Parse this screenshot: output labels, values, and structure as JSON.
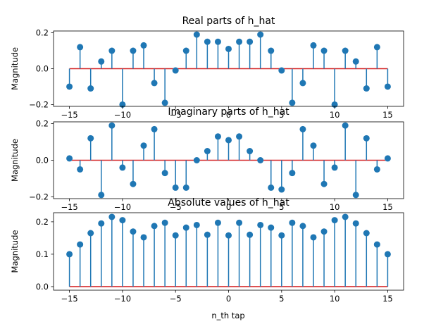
{
  "figure": {
    "xlabel": "n_th tap"
  },
  "chart_data": [
    {
      "type": "stem",
      "title": "Real parts of h_hat",
      "xlabel": "",
      "ylabel": "Magnitude",
      "xlim": [
        -16.5,
        16.5
      ],
      "ylim": [
        -0.21,
        0.21
      ],
      "xticks": [
        -15,
        -10,
        -5,
        0,
        5,
        10,
        15
      ],
      "xtick_labels": [
        "−15",
        "−10",
        "−5",
        "0",
        "5",
        "10",
        "15"
      ],
      "yticks": [
        -0.2,
        0.0,
        0.2
      ],
      "ytick_labels": [
        "−0.2",
        "0.0",
        "0.2"
      ],
      "x": [
        -15,
        -14,
        -13,
        -12,
        -11,
        -10,
        -9,
        -8,
        -7,
        -6,
        -5,
        -4,
        -3,
        -2,
        -1,
        0,
        1,
        2,
        3,
        4,
        5,
        6,
        7,
        8,
        9,
        10,
        11,
        12,
        13,
        14,
        15
      ],
      "y": [
        -0.1,
        0.12,
        -0.11,
        0.04,
        0.1,
        -0.2,
        0.1,
        0.13,
        -0.08,
        -0.19,
        -0.01,
        0.1,
        0.19,
        0.15,
        0.15,
        0.11,
        0.15,
        0.15,
        0.19,
        0.1,
        -0.01,
        -0.19,
        -0.08,
        0.13,
        0.1,
        -0.2,
        0.1,
        0.04,
        -0.11,
        0.12,
        -0.1
      ]
    },
    {
      "type": "stem",
      "title": "Imaginary parts of h_hat",
      "xlabel": "",
      "ylabel": "Magnitude",
      "xlim": [
        -16.5,
        16.5
      ],
      "ylim": [
        -0.21,
        0.21
      ],
      "xticks": [
        -15,
        -10,
        -5,
        0,
        5,
        10,
        15
      ],
      "xtick_labels": [
        "−15",
        "−10",
        "−5",
        "0",
        "5",
        "10",
        "15"
      ],
      "yticks": [
        -0.2,
        0.0,
        0.2
      ],
      "ytick_labels": [
        "−0.2",
        "0.0",
        "0.2"
      ],
      "x": [
        -15,
        -14,
        -13,
        -12,
        -11,
        -10,
        -9,
        -8,
        -7,
        -6,
        -5,
        -4,
        -3,
        -2,
        -1,
        0,
        1,
        2,
        3,
        4,
        5,
        6,
        7,
        8,
        9,
        10,
        11,
        12,
        13,
        14,
        15
      ],
      "y": [
        0.01,
        -0.05,
        0.12,
        -0.19,
        0.19,
        -0.04,
        -0.13,
        0.08,
        0.17,
        -0.07,
        -0.15,
        -0.15,
        0.0,
        0.05,
        0.13,
        0.11,
        0.13,
        0.05,
        0.0,
        -0.15,
        -0.16,
        -0.07,
        0.17,
        0.08,
        -0.13,
        -0.04,
        0.19,
        -0.19,
        0.12,
        -0.05,
        0.01
      ]
    },
    {
      "type": "stem",
      "title": "Absolute values of h_hat",
      "xlabel": "n_th tap",
      "ylabel": "Magnitude",
      "xlim": [
        -16.5,
        16.5
      ],
      "ylim": [
        -0.011,
        0.228
      ],
      "xticks": [
        -15,
        -10,
        -5,
        0,
        5,
        10,
        15
      ],
      "xtick_labels": [
        "−15",
        "−10",
        "−5",
        "0",
        "5",
        "10",
        "15"
      ],
      "yticks": [
        0.0,
        0.1,
        0.2
      ],
      "ytick_labels": [
        "0.0",
        "0.1",
        "0.2"
      ],
      "x": [
        -15,
        -14,
        -13,
        -12,
        -11,
        -10,
        -9,
        -8,
        -7,
        -6,
        -5,
        -4,
        -3,
        -2,
        -1,
        0,
        1,
        2,
        3,
        4,
        5,
        6,
        7,
        8,
        9,
        10,
        11,
        12,
        13,
        14,
        15
      ],
      "y": [
        0.1,
        0.13,
        0.165,
        0.195,
        0.215,
        0.205,
        0.17,
        0.152,
        0.187,
        0.197,
        0.158,
        0.182,
        0.19,
        0.16,
        0.197,
        0.158,
        0.197,
        0.16,
        0.19,
        0.182,
        0.158,
        0.197,
        0.187,
        0.152,
        0.17,
        0.205,
        0.215,
        0.195,
        0.165,
        0.13,
        0.1
      ]
    }
  ],
  "colors": {
    "stem": "#1f77b4",
    "baseline": "#d62728",
    "axes": "#000000"
  }
}
